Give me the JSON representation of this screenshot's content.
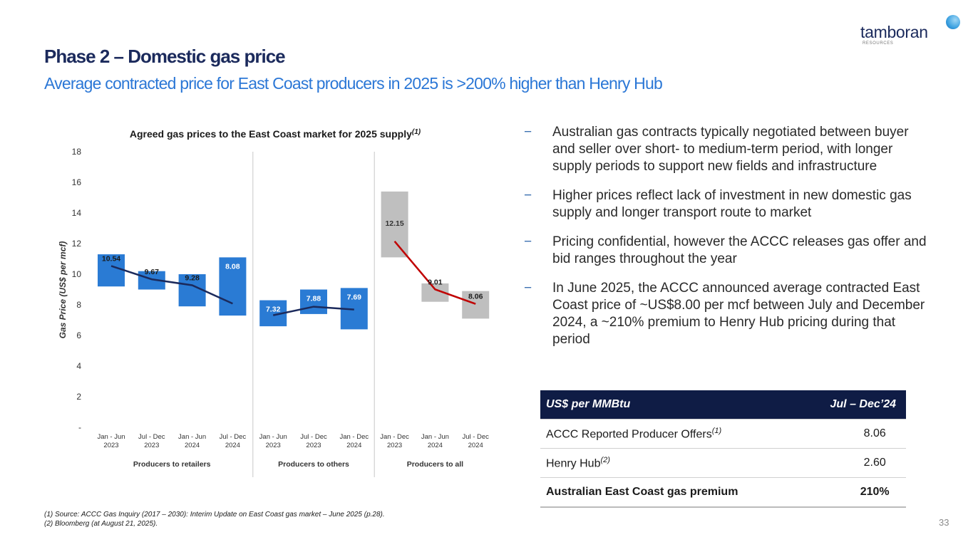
{
  "header": {
    "title": "Phase 2 – Domestic gas price",
    "subtitle": "Average contracted price for East Coast producers in 2025 is >200% higher than Henry Hub"
  },
  "logo": {
    "word": "tamboran",
    "sub": "RESOURCES"
  },
  "chart_data": {
    "type": "bar",
    "title": "Agreed gas prices to the East Coast market for 2025 supply",
    "title_sup": "(1)",
    "ylabel": "Gas Price (US$ per mcf)",
    "ylim": [
      0,
      18
    ],
    "yticks": [
      "-",
      "2",
      "4",
      "6",
      "8",
      "10",
      "12",
      "14",
      "16",
      "18"
    ],
    "groups": [
      {
        "name": "Producers to retailers",
        "categories": [
          [
            "Jan - Jun",
            "2023"
          ],
          [
            "Jul - Dec",
            "2023"
          ],
          [
            "Jan - Jun",
            "2024"
          ],
          [
            "Jul - Dec",
            "2024"
          ]
        ],
        "ranges": [
          [
            9.2,
            11.3
          ],
          [
            9.0,
            10.2
          ],
          [
            7.9,
            10.0
          ],
          [
            7.3,
            11.1
          ]
        ],
        "averages": [
          10.54,
          9.67,
          9.28,
          8.08
        ],
        "labels": [
          "10.54",
          "9.67",
          "9.28",
          "8.08"
        ],
        "bar_color": "#2a7bd4",
        "line_color": "#1b2a5c"
      },
      {
        "name": "Producers to others",
        "categories": [
          [
            "Jan - Jun",
            "2023"
          ],
          [
            "Jul - Dec",
            "2023"
          ],
          [
            "Jan - Dec",
            "2024"
          ]
        ],
        "ranges": [
          [
            6.6,
            8.3
          ],
          [
            7.4,
            9.0
          ],
          [
            6.4,
            9.1
          ]
        ],
        "averages": [
          7.32,
          7.88,
          7.69
        ],
        "labels": [
          "7.32",
          "7.88",
          "7.69"
        ],
        "bar_color": "#2a7bd4",
        "line_color": "#1b2a5c"
      },
      {
        "name": "Producers to all",
        "categories": [
          [
            "Jan - Dec",
            "2023"
          ],
          [
            "Jan - Jun",
            "2024"
          ],
          [
            "Jul - Dec",
            "2024"
          ]
        ],
        "ranges": [
          [
            11.1,
            15.4
          ],
          [
            8.2,
            9.4
          ],
          [
            7.1,
            8.9
          ]
        ],
        "averages": [
          12.15,
          9.01,
          8.06
        ],
        "labels": [
          "12.15",
          "9.01",
          "8.06"
        ],
        "bar_color": "#bfbfbf",
        "line_color": "#c00000"
      }
    ]
  },
  "bullets": [
    "Australian gas contracts typically negotiated between buyer and seller over short- to medium-term period, with longer supply periods to support new fields and infrastructure",
    "Higher prices reflect lack of investment in new domestic gas supply and longer transport route to market",
    "Pricing confidential, however the ACCC releases gas offer and bid ranges throughout the year",
    "In June 2025, the ACCC announced average contracted East Coast price of ~US$8.00 per mcf between July and December 2024, a ~210% premium to Henry Hub pricing during that period"
  ],
  "bullet_marker": "−",
  "price_table": {
    "header": [
      "US$ per MMBtu",
      "Jul – Dec’24"
    ],
    "rows": [
      {
        "label": "ACCC Reported Producer Offers",
        "sup": "(1)",
        "value": "8.06"
      },
      {
        "label": "Henry Hub",
        "sup": "(2)",
        "value": "2.60"
      },
      {
        "label": "Australian East Coast gas premium",
        "sup": "",
        "value": "210%"
      }
    ]
  },
  "footnotes": [
    "(1) Source: ACCC Gas Inquiry (2017 – 2030): Interim Update on East Coast gas market – June 2025 (p.28).",
    "(2) Bloomberg (at August 21, 2025)."
  ],
  "page_number": "33"
}
